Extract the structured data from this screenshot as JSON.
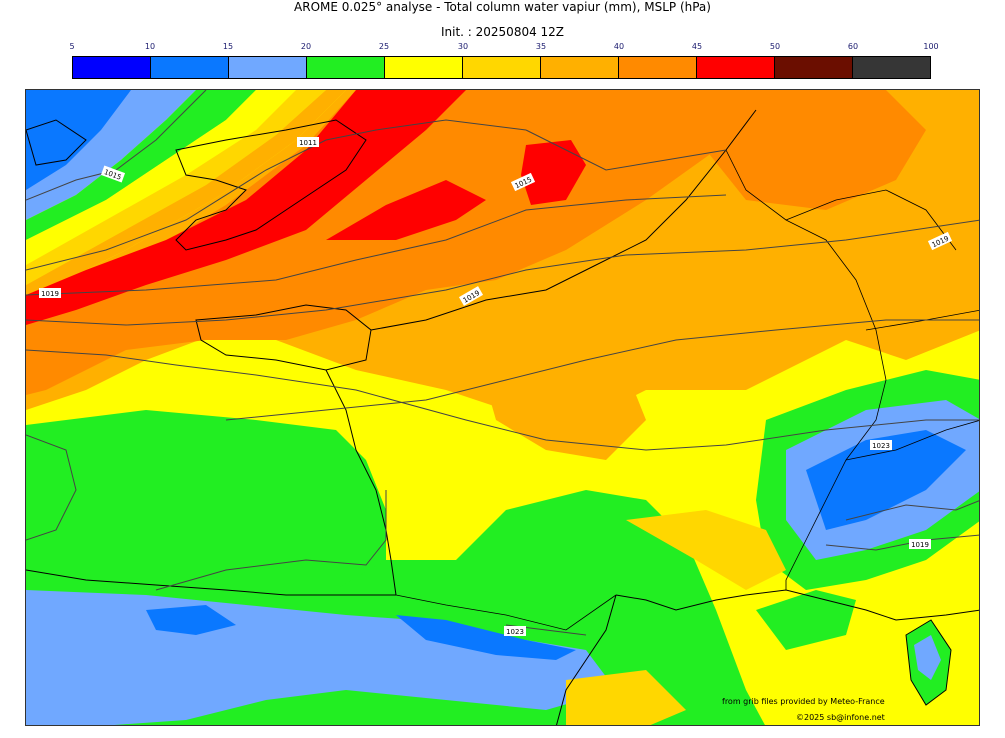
{
  "title": {
    "line1": "AROME 0.025° analyse - Total column water vapiur (mm), MSLP (hPa)",
    "line2": "Init. : 20250804 12Z"
  },
  "colorbar": {
    "ticks": [
      "5",
      "10",
      "15",
      "20",
      "25",
      "30",
      "35",
      "40",
      "45",
      "50",
      "60",
      "100"
    ],
    "colors": [
      "#0000ff",
      "#0a78ff",
      "#70a8ff",
      "#22ee22",
      "#ffff00",
      "#ffd700",
      "#ffb000",
      "#ff8a00",
      "#ff0000",
      "#6b0e00",
      "#363636"
    ]
  },
  "isobars": [
    {
      "label": "1011"
    },
    {
      "label": "1015"
    },
    {
      "label": "1015"
    },
    {
      "label": "1019"
    },
    {
      "label": "1019"
    },
    {
      "label": "1019"
    },
    {
      "label": "1019"
    },
    {
      "label": "1023"
    },
    {
      "label": "1023"
    }
  ],
  "credits": {
    "line1": "from grib files provided by Meteo-France",
    "line2": "©2025 sb@infone.net"
  }
}
